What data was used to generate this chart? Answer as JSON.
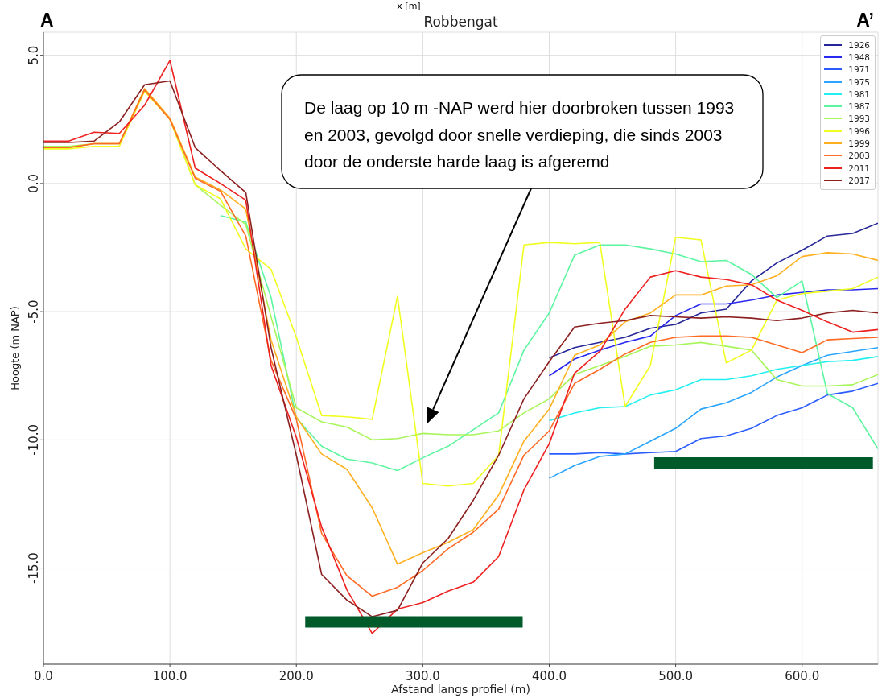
{
  "chart_data": {
    "type": "line",
    "title": "Robbengat",
    "xlabel": "Afstand langs profiel (m)",
    "ylabel": "Hoogte (m NAP)",
    "x": [
      0,
      20,
      40,
      60,
      80,
      100,
      120,
      140,
      160,
      180,
      200,
      220,
      240,
      260,
      280,
      300,
      320,
      340,
      360,
      380,
      400,
      420,
      440,
      460,
      480,
      500,
      520,
      540,
      560,
      580,
      600,
      620,
      640,
      660
    ],
    "xlim": [
      0,
      660
    ],
    "ylim": [
      -18.75,
      5.9
    ],
    "xticks": [
      {
        "value": 0,
        "label": "0.0"
      },
      {
        "value": 100,
        "label": "100.0"
      },
      {
        "value": 200,
        "label": "200.0"
      },
      {
        "value": 300,
        "label": "300.0"
      },
      {
        "value": 400,
        "label": "400.0"
      },
      {
        "value": 500,
        "label": "500.0"
      },
      {
        "value": 600,
        "label": "600.0"
      }
    ],
    "yticks": [
      {
        "value": 5,
        "label": "5.0"
      },
      {
        "value": 0,
        "label": "0.0"
      },
      {
        "value": -5,
        "label": "-5.0"
      },
      {
        "value": -10,
        "label": "-10.0"
      },
      {
        "value": -15,
        "label": "-15.0"
      }
    ],
    "grid": true,
    "legend": "top right",
    "series": [
      {
        "name": "1926",
        "color": "#262699",
        "values": [
          null,
          null,
          null,
          null,
          null,
          null,
          null,
          null,
          null,
          null,
          null,
          null,
          null,
          null,
          null,
          null,
          null,
          null,
          null,
          null,
          -6.8,
          -6.4,
          -6.2,
          -6.0,
          -5.65,
          -5.5,
          -5.05,
          -4.9,
          -3.8,
          -3.1,
          -2.6,
          -2.05,
          -1.95,
          -1.55
        ]
      },
      {
        "name": "1948",
        "color": "#2828f0",
        "values": [
          null,
          null,
          null,
          null,
          null,
          null,
          null,
          null,
          null,
          null,
          null,
          null,
          null,
          null,
          null,
          null,
          null,
          null,
          null,
          null,
          -7.5,
          -6.85,
          -6.5,
          -6.2,
          -5.95,
          -5.15,
          -4.7,
          -4.7,
          -4.55,
          -4.35,
          -4.25,
          -4.15,
          -4.15,
          -4.1
        ]
      },
      {
        "name": "1971",
        "color": "#2a5cff",
        "values": [
          null,
          null,
          null,
          null,
          null,
          null,
          null,
          null,
          null,
          null,
          null,
          null,
          null,
          null,
          null,
          null,
          null,
          null,
          null,
          null,
          -10.55,
          -10.55,
          -10.5,
          -10.55,
          -10.5,
          -10.45,
          -9.95,
          -9.85,
          -9.55,
          -9.05,
          -8.75,
          -8.25,
          -8.1,
          -7.8
        ]
      },
      {
        "name": "1975",
        "color": "#2aa5ff",
        "values": [
          null,
          null,
          null,
          null,
          null,
          null,
          null,
          null,
          null,
          null,
          null,
          null,
          null,
          null,
          null,
          null,
          null,
          null,
          null,
          null,
          -11.5,
          -11.0,
          -10.65,
          -10.55,
          -10.05,
          -9.55,
          -8.8,
          -8.55,
          -8.15,
          -7.55,
          -7.1,
          -6.7,
          -6.55,
          -6.4
        ]
      },
      {
        "name": "1981",
        "color": "#22f0f0",
        "values": [
          null,
          null,
          null,
          null,
          null,
          null,
          null,
          null,
          null,
          null,
          null,
          null,
          null,
          null,
          null,
          null,
          null,
          null,
          null,
          null,
          -9.25,
          -8.95,
          -8.75,
          -8.7,
          -8.25,
          -8.05,
          -7.65,
          -7.65,
          -7.5,
          -7.25,
          -7.1,
          -6.95,
          -6.9,
          -6.75
        ]
      },
      {
        "name": "1987",
        "color": "#5cf5a0",
        "values": [
          null,
          null,
          null,
          null,
          null,
          null,
          null,
          -1.25,
          -1.5,
          -4.45,
          -9.15,
          -10.25,
          -10.75,
          -10.9,
          -11.2,
          -10.7,
          -10.25,
          -9.6,
          -8.95,
          -6.5,
          -5.05,
          -2.8,
          -2.4,
          -2.4,
          -2.55,
          -2.75,
          -3.05,
          -3.0,
          -3.55,
          -4.45,
          -3.8,
          -8.2,
          -8.75,
          -10.35
        ]
      },
      {
        "name": "1993",
        "color": "#a8f55a",
        "values": [
          1.45,
          1.45,
          1.55,
          1.55,
          3.65,
          2.5,
          -0.05,
          -0.85,
          -1.6,
          -5.2,
          -8.75,
          -9.3,
          -9.5,
          -10.0,
          -9.95,
          -9.75,
          -9.8,
          -9.8,
          -9.65,
          -8.95,
          -8.4,
          -7.45,
          -7.1,
          -6.75,
          -6.35,
          -6.3,
          -6.2,
          -6.35,
          -6.5,
          -7.65,
          -7.9,
          -7.9,
          -7.85,
          -7.45
        ]
      },
      {
        "name": "1996",
        "color": "#f0ff20",
        "values": [
          1.35,
          1.35,
          1.45,
          1.45,
          3.6,
          2.5,
          -0.05,
          -0.6,
          -2.55,
          -3.35,
          -6.0,
          -9.05,
          -9.1,
          -9.2,
          -4.4,
          -11.7,
          -11.8,
          -11.7,
          -10.6,
          -2.4,
          -2.3,
          -2.35,
          -2.3,
          -8.7,
          -7.1,
          -2.1,
          -2.2,
          -7.0,
          -6.5,
          -4.55,
          -4.3,
          -4.2,
          -4.1,
          -3.65
        ]
      },
      {
        "name": "1999",
        "color": "#ffb020",
        "values": [
          1.4,
          1.4,
          1.55,
          1.55,
          3.7,
          2.55,
          0.25,
          -0.25,
          -1.0,
          -6.1,
          -9.1,
          -10.55,
          -11.15,
          -12.65,
          -14.85,
          -14.4,
          -14.0,
          -13.5,
          -12.15,
          -10.05,
          -8.8,
          -6.7,
          -6.3,
          -5.4,
          -5.05,
          -4.35,
          -4.35,
          -4.0,
          -3.95,
          -3.6,
          -2.85,
          -2.7,
          -2.75,
          -3.0
        ]
      },
      {
        "name": "2003",
        "color": "#ff6a25",
        "values": [
          1.4,
          1.4,
          1.55,
          1.55,
          3.65,
          2.5,
          0.2,
          -0.3,
          -2.05,
          -6.9,
          -9.2,
          -13.65,
          -15.3,
          -16.1,
          -15.75,
          -15.1,
          -14.25,
          -13.6,
          -12.7,
          -10.6,
          -9.65,
          -7.8,
          -7.25,
          -6.65,
          -6.2,
          -6.0,
          -5.95,
          -5.95,
          -6.0,
          -6.3,
          -6.6,
          -6.1,
          -6.05,
          -6.0
        ]
      },
      {
        "name": "2011",
        "color": "#ee2020",
        "values": [
          1.65,
          1.65,
          2.0,
          1.95,
          3.05,
          4.8,
          0.6,
          0.0,
          -0.65,
          -7.1,
          -9.9,
          -13.4,
          -15.85,
          -17.55,
          -16.6,
          -16.35,
          -15.9,
          -15.55,
          -14.55,
          -11.95,
          -10.15,
          -7.4,
          -6.55,
          -4.9,
          -3.65,
          -3.4,
          -3.65,
          -3.75,
          -3.95,
          -4.55,
          -4.95,
          -5.4,
          -5.8,
          -5.7
        ]
      },
      {
        "name": "2017",
        "color": "#8c2020",
        "values": [
          1.6,
          1.6,
          1.65,
          2.4,
          3.85,
          4.0,
          1.4,
          0.5,
          -0.35,
          -6.4,
          -10.6,
          -15.25,
          -16.25,
          -16.9,
          -16.65,
          -14.8,
          -13.85,
          -12.35,
          -10.6,
          -8.4,
          -6.95,
          -5.6,
          -5.45,
          -5.35,
          -5.15,
          -5.2,
          -5.25,
          -5.2,
          -5.25,
          -5.35,
          -5.25,
          -5.05,
          -4.95,
          -5.05
        ]
      },
      {
        "color": "#005a2a",
        "x": [
          207,
          379
        ],
        "values": [
          -17.1,
          -17.1
        ]
      },
      {
        "color": "#005a2a",
        "x": [
          483,
          656
        ],
        "values": [
          -10.9,
          -10.9
        ]
      }
    ],
    "annotations": [
      "A",
      "A’",
      "x [m]",
      "De laag op 10 m -NAP werd hier doorbroken tussen 1993 en 2003, gevolgd door snelle verdieping, die sinds 2003 door de onderste harde laag is afgeremd"
    ]
  }
}
